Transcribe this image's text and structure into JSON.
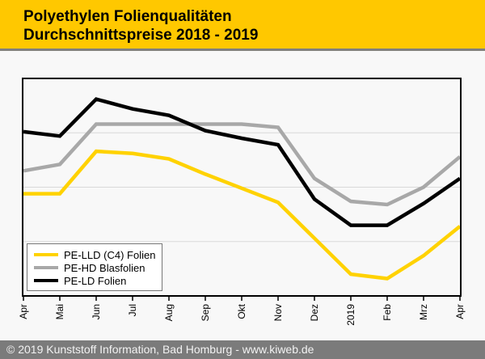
{
  "header": {
    "title_line1": "Polyethylen Folienqualitäten",
    "title_line2": "Durchschnittspreise 2018 - 2019",
    "background_color": "#FFC800",
    "rule_color": "#808080"
  },
  "chart_data": {
    "type": "line",
    "title": "Polyethylen Folienqualitäten Durchschnittspreise 2018 - 2019",
    "x_labels": [
      "Apr",
      "Mai",
      "Jun",
      "Jul",
      "Aug",
      "Sep",
      "Okt",
      "Nov",
      "Dez",
      "2019",
      "Feb",
      "Mrz",
      "Apr"
    ],
    "xlabel": "",
    "ylabel": "",
    "y_axis": {
      "labels_visible": false,
      "note": "no price scale printed on chart; values below are percent of plot height above bottom axis (0 = bottom axis, 100 = top border), estimated from pixels",
      "range": [
        0,
        100
      ],
      "gridlines_at": [
        25,
        50,
        75
      ]
    },
    "grid": "horizontal-only",
    "legend_position": "bottom-left-inside",
    "series": [
      {
        "name": "PE-LLD (C4) Folien",
        "color": "#FFD200",
        "values": [
          47,
          47,
          66.5,
          65.5,
          63,
          56,
          49.5,
          43,
          26.5,
          10,
          8,
          18.5,
          32
        ]
      },
      {
        "name": "PE-HD Blasfolien",
        "color": "#A8A8A8",
        "values": [
          57.5,
          60.5,
          79,
          79,
          79,
          79,
          79,
          77.5,
          54,
          43.5,
          42,
          50,
          64
        ]
      },
      {
        "name": "PE-LD Folien",
        "color": "#000000",
        "values": [
          75.5,
          73.5,
          90.5,
          86,
          83,
          76,
          72.5,
          69.5,
          44.5,
          32.5,
          32.5,
          42.5,
          54
        ]
      }
    ],
    "style": {
      "plot_border_color": "#000000",
      "gridline_color": "#d9d9d9",
      "line_width": 4.5
    }
  },
  "footer": {
    "copyright": "© 2019 Kunststoff Information, Bad Homburg - www.kiweb.de",
    "background_color": "#7b7b7b"
  }
}
